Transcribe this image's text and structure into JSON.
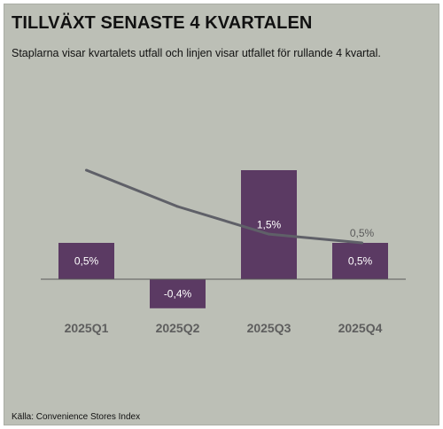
{
  "header": {
    "title": "TILLVÄXT SENASTE 4 KVARTALEN",
    "subtitle": "Staplarna visar kvartalets utfall och linjen visar utfallet för rullande 4 kvartal."
  },
  "footer": {
    "source": "Källa: Convenience Stores Index"
  },
  "colors": {
    "background": "#bcbfb6",
    "bar": "#5b3a63",
    "line": "#5f6068"
  },
  "chart_data": {
    "type": "bar",
    "categories": [
      "2025Q1",
      "2025Q2",
      "2025Q3",
      "2025Q4"
    ],
    "series": [
      {
        "type": "bar",
        "values": [
          0.5,
          -0.4,
          1.5,
          0.5
        ],
        "labels": [
          "0,5%",
          "-0,4%",
          "1,5%",
          "0,5%"
        ]
      },
      {
        "type": "line",
        "values": [
          1.5,
          1.0,
          0.62,
          0.5
        ],
        "labels": [
          "",
          "",
          "",
          "0,5%"
        ]
      }
    ],
    "title": "TILLVÄXT SENASTE 4 KVARTALEN",
    "xlabel": "",
    "ylabel": "",
    "ylim": [
      -0.5,
      1.7
    ],
    "grid": false,
    "legend": "none"
  }
}
